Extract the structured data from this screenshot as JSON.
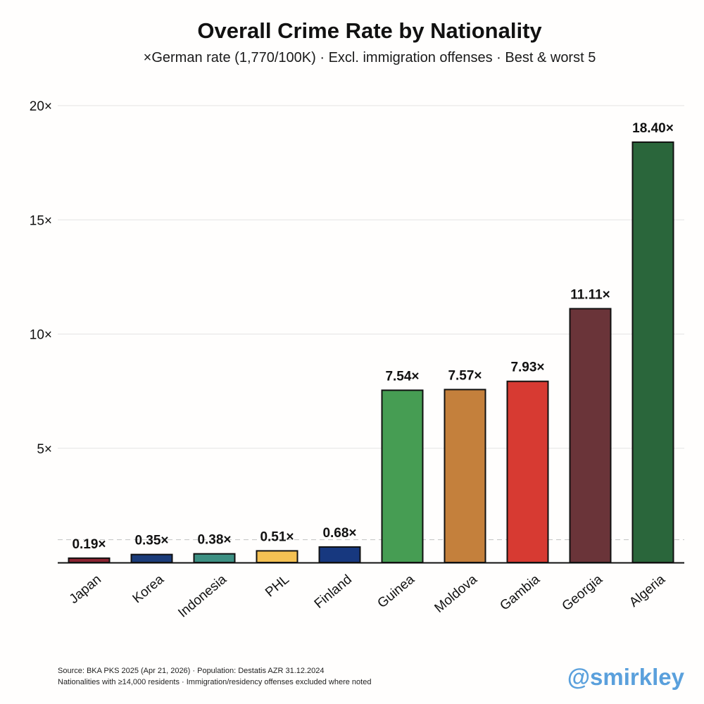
{
  "chart_data": {
    "type": "bar",
    "title": "Overall Crime Rate by Nationality",
    "subtitle": "×German rate (1,770/100K) · Excl. immigration offenses · Best & worst 5",
    "categories": [
      "Japan",
      "Korea",
      "Indonesia",
      "PHL",
      "Finland",
      "Guinea",
      "Moldova",
      "Gambia",
      "Georgia",
      "Algeria"
    ],
    "values": [
      0.19,
      0.35,
      0.38,
      0.51,
      0.68,
      7.54,
      7.57,
      7.93,
      11.11,
      18.4
    ],
    "data_labels": [
      "0.19×",
      "0.35×",
      "0.38×",
      "0.51×",
      "0.68×",
      "7.54×",
      "7.57×",
      "7.93×",
      "11.11×",
      "18.40×"
    ],
    "colors": [
      "#8b2331",
      "#1b3c7a",
      "#3d9083",
      "#f4c153",
      "#17387f",
      "#469d53",
      "#c4803c",
      "#d73a32",
      "#6a3439",
      "#2a663b"
    ],
    "ylim": [
      0,
      20
    ],
    "yticks": [
      5,
      10,
      15,
      20
    ],
    "ytick_labels": [
      "5×",
      "10×",
      "15×",
      "20×"
    ],
    "reference_line": 1,
    "xlabel": "",
    "ylabel": "",
    "grid": true
  },
  "footer": {
    "source": "Source: BKA PKS 2025 (Apr 21, 2026) · Population: Destatis AZR 31.12.2024",
    "note": "Nationalities with ≥14,000 residents · Immigration/residency offenses excluded where noted"
  },
  "watermark": "@smirkley"
}
